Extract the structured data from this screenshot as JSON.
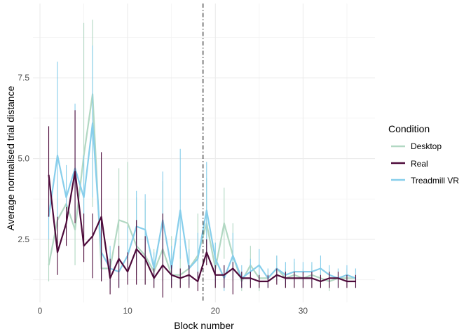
{
  "chart_data": {
    "type": "line",
    "xlabel": "Block number",
    "ylabel": "Average normalised trial distance",
    "xlim": [
      -0.8,
      38.2
    ],
    "ylim": [
      0.55,
      9.8
    ],
    "x_ticks": [
      0,
      10,
      20,
      30
    ],
    "y_ticks": [
      2.5,
      5.0,
      7.5
    ],
    "y_tick_labels": [
      "2.5",
      "5.0",
      "7.5"
    ],
    "vline_x": 18.6,
    "grid": true,
    "legend_title": "Condition",
    "legend_position": "right",
    "series": [
      {
        "name": "Desktop",
        "color": "#b2d8c3",
        "x": [
          1,
          2,
          3,
          4,
          5,
          6,
          7,
          8,
          9,
          10,
          11,
          12,
          13,
          14,
          15,
          16,
          17,
          18,
          19,
          20,
          21,
          22,
          23,
          24,
          25,
          26,
          27,
          28,
          29,
          30,
          31,
          32,
          33,
          34,
          35,
          36
        ],
        "y": [
          1.7,
          3.1,
          3.6,
          2.8,
          5.1,
          7.0,
          1.6,
          1.6,
          3.1,
          3.0,
          2.3,
          2.0,
          1.5,
          2.2,
          1.4,
          1.4,
          1.6,
          2.0,
          3.0,
          1.6,
          3.0,
          2.0,
          1.2,
          1.7,
          1.3,
          1.3,
          1.6,
          1.3,
          1.4,
          1.3,
          1.4,
          1.3,
          1.2,
          1.3,
          1.3,
          1.3
        ],
        "err_high": [
          3.8,
          4.2,
          4.6,
          4.0,
          9.2,
          9.3,
          2.5,
          2.1,
          4.7,
          4.9,
          3.8,
          3.7,
          2.2,
          4.3,
          2.6,
          2.3,
          2.5,
          3.3,
          4.4,
          2.4,
          4.1,
          3.0,
          1.5,
          2.3,
          1.6,
          1.6,
          2.0,
          1.6,
          1.8,
          1.6,
          1.7,
          1.6,
          1.5,
          1.6,
          1.6,
          1.6
        ],
        "err_low": [
          1.2,
          2.0,
          2.6,
          1.7,
          2.3,
          3.5,
          1.2,
          1.1,
          1.8,
          1.6,
          1.4,
          1.1,
          1.0,
          1.2,
          1.0,
          1.0,
          1.1,
          1.3,
          1.8,
          1.0,
          1.9,
          1.2,
          0.9,
          1.2,
          0.9,
          1.0,
          1.2,
          1.0,
          1.0,
          1.0,
          1.0,
          1.0,
          0.9,
          1.0,
          1.0,
          1.0
        ]
      },
      {
        "name": "Real",
        "color": "#4d0a3a",
        "x": [
          1,
          2,
          3,
          4,
          5,
          6,
          7,
          8,
          9,
          10,
          11,
          12,
          13,
          14,
          15,
          16,
          17,
          18,
          19,
          20,
          21,
          22,
          23,
          24,
          25,
          26,
          27,
          28,
          29,
          30,
          31,
          32,
          33,
          34,
          35,
          36
        ],
        "y": [
          4.5,
          2.1,
          3.0,
          4.6,
          2.3,
          2.6,
          3.2,
          1.3,
          1.9,
          1.5,
          2.2,
          1.9,
          1.3,
          1.7,
          1.4,
          1.3,
          1.4,
          1.2,
          2.1,
          1.4,
          1.4,
          1.6,
          1.3,
          1.3,
          1.2,
          1.2,
          1.4,
          1.3,
          1.3,
          1.3,
          1.3,
          1.2,
          1.3,
          1.3,
          1.2,
          1.2
        ],
        "err_high": [
          6.0,
          3.2,
          3.5,
          6.5,
          3.3,
          3.3,
          5.2,
          1.9,
          2.3,
          2.1,
          3.1,
          2.6,
          1.6,
          3.3,
          1.7,
          1.6,
          1.7,
          1.5,
          2.5,
          1.7,
          1.7,
          1.8,
          1.5,
          1.5,
          1.4,
          1.4,
          1.6,
          1.5,
          1.5,
          1.5,
          1.5,
          1.4,
          1.5,
          1.5,
          1.4,
          1.4
        ],
        "err_low": [
          3.2,
          1.4,
          2.3,
          3.0,
          1.8,
          1.3,
          1.2,
          0.8,
          1.0,
          1.1,
          1.1,
          1.1,
          1.0,
          0.7,
          1.0,
          1.0,
          1.0,
          0.9,
          1.7,
          1.0,
          1.0,
          0.8,
          1.0,
          1.0,
          1.0,
          1.0,
          1.1,
          1.0,
          1.0,
          1.0,
          1.0,
          1.0,
          1.0,
          1.0,
          1.0,
          1.0
        ]
      },
      {
        "name": "Treadmill VR",
        "color": "#87ceeb",
        "x": [
          1,
          2,
          3,
          4,
          5,
          6,
          7,
          8,
          9,
          10,
          11,
          12,
          13,
          14,
          15,
          16,
          17,
          18,
          19,
          20,
          21,
          22,
          23,
          24,
          25,
          26,
          27,
          28,
          29,
          30,
          31,
          32,
          33,
          34,
          35,
          36
        ],
        "y": [
          3.2,
          5.1,
          3.8,
          4.7,
          3.8,
          6.1,
          2.1,
          1.6,
          1.5,
          2.0,
          2.9,
          2.8,
          1.6,
          3.1,
          1.6,
          3.4,
          1.6,
          1.9,
          3.4,
          1.9,
          1.3,
          2.0,
          1.3,
          1.5,
          1.7,
          1.3,
          1.6,
          1.4,
          1.5,
          1.5,
          1.5,
          1.6,
          1.4,
          1.3,
          1.4,
          1.3
        ],
        "err_high": [
          4.5,
          8.0,
          4.8,
          6.7,
          5.1,
          8.5,
          3.1,
          2.3,
          2.0,
          2.9,
          4.0,
          3.9,
          2.1,
          4.6,
          2.3,
          5.3,
          2.2,
          2.7,
          4.9,
          2.4,
          1.7,
          2.7,
          1.7,
          1.9,
          2.2,
          1.6,
          2.0,
          1.8,
          1.9,
          1.8,
          1.8,
          2.0,
          1.7,
          1.6,
          1.7,
          1.6
        ],
        "err_low": [
          2.5,
          3.0,
          3.2,
          3.2,
          3.0,
          3.8,
          1.3,
          1.0,
          1.0,
          1.3,
          1.8,
          1.7,
          1.2,
          1.8,
          1.1,
          1.9,
          1.1,
          1.3,
          2.0,
          1.2,
          0.9,
          1.3,
          1.0,
          1.2,
          1.3,
          1.0,
          1.3,
          1.1,
          1.2,
          1.2,
          1.2,
          1.3,
          1.1,
          1.0,
          1.1,
          1.0
        ]
      }
    ]
  }
}
